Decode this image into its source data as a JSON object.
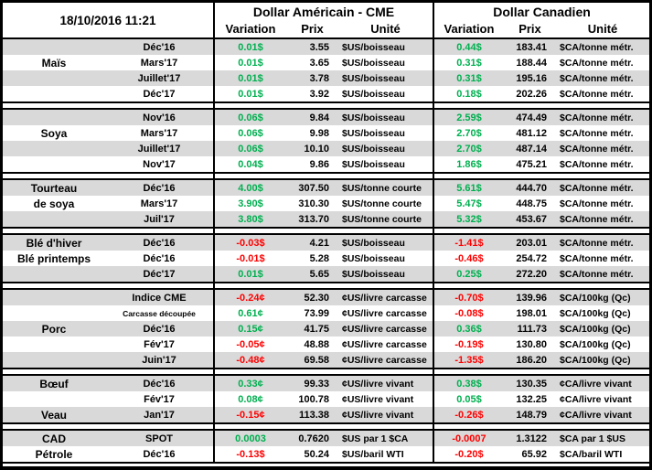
{
  "meta": {
    "timestamp": "18/10/2016 11:21"
  },
  "header": {
    "usd_group": "Dollar Américain - CME",
    "cad_group": "Dollar Canadien",
    "variation": "Variation",
    "prix": "Prix",
    "unite": "Unité"
  },
  "colors": {
    "positive": "#00B050",
    "negative": "#FF0000",
    "stripe": "#D9D9D9",
    "border": "#000000"
  },
  "sections": [
    {
      "id": "mais",
      "rows": [
        {
          "label": "",
          "month": "Déc'16",
          "us_var": "0.01$",
          "us_prix": "3.55",
          "us_unit": "$US/boisseau",
          "ca_var": "0.44$",
          "ca_prix": "183.41",
          "ca_unit": "$CA/tonne métr."
        },
        {
          "label": "Maïs",
          "month": "Mars'17",
          "us_var": "0.01$",
          "us_prix": "3.65",
          "us_unit": "$US/boisseau",
          "ca_var": "0.31$",
          "ca_prix": "188.44",
          "ca_unit": "$CA/tonne métr."
        },
        {
          "label": "",
          "month": "Juillet'17",
          "us_var": "0.01$",
          "us_prix": "3.78",
          "us_unit": "$US/boisseau",
          "ca_var": "0.31$",
          "ca_prix": "195.16",
          "ca_unit": "$CA/tonne métr."
        },
        {
          "label": "",
          "month": "Déc'17",
          "us_var": "0.01$",
          "us_prix": "3.92",
          "us_unit": "$US/boisseau",
          "ca_var": "0.18$",
          "ca_prix": "202.26",
          "ca_unit": "$CA/tonne métr."
        }
      ]
    },
    {
      "id": "soya",
      "rows": [
        {
          "label": "",
          "month": "Nov'16",
          "us_var": "0.06$",
          "us_prix": "9.84",
          "us_unit": "$US/boisseau",
          "ca_var": "2.59$",
          "ca_prix": "474.49",
          "ca_unit": "$CA/tonne métr."
        },
        {
          "label": "Soya",
          "month": "Mars'17",
          "us_var": "0.06$",
          "us_prix": "9.98",
          "us_unit": "$US/boisseau",
          "ca_var": "2.70$",
          "ca_prix": "481.12",
          "ca_unit": "$CA/tonne métr."
        },
        {
          "label": "",
          "month": "Juillet'17",
          "us_var": "0.06$",
          "us_prix": "10.10",
          "us_unit": "$US/boisseau",
          "ca_var": "2.70$",
          "ca_prix": "487.14",
          "ca_unit": "$CA/tonne métr."
        },
        {
          "label": "",
          "month": "Nov'17",
          "us_var": "0.04$",
          "us_prix": "9.86",
          "us_unit": "$US/boisseau",
          "ca_var": "1.86$",
          "ca_prix": "475.21",
          "ca_unit": "$CA/tonne métr."
        }
      ]
    },
    {
      "id": "tourteau-de-soya",
      "rows": [
        {
          "label": "Tourteau",
          "month": "Déc'16",
          "us_var": "4.00$",
          "us_prix": "307.50",
          "us_unit": "$US/tonne courte",
          "ca_var": "5.61$",
          "ca_prix": "444.70",
          "ca_unit": "$CA/tonne métr."
        },
        {
          "label": "de soya",
          "month": "Mars'17",
          "us_var": "3.90$",
          "us_prix": "310.30",
          "us_unit": "$US/tonne courte",
          "ca_var": "5.47$",
          "ca_prix": "448.75",
          "ca_unit": "$CA/tonne métr."
        },
        {
          "label": "",
          "month": "Juil'17",
          "us_var": "3.80$",
          "us_prix": "313.70",
          "us_unit": "$US/tonne courte",
          "ca_var": "5.32$",
          "ca_prix": "453.67",
          "ca_unit": "$CA/tonne métr."
        }
      ]
    },
    {
      "id": "ble",
      "rows": [
        {
          "label": "Blé d'hiver",
          "month": "Déc'16",
          "us_var": "-0.03$",
          "us_prix": "4.21",
          "us_unit": "$US/boisseau",
          "ca_var": "-1.41$",
          "ca_prix": "203.01",
          "ca_unit": "$CA/tonne métr."
        },
        {
          "label": "Blé printemps",
          "month": "Déc'16",
          "us_var": "-0.01$",
          "us_prix": "5.28",
          "us_unit": "$US/boisseau",
          "ca_var": "-0.46$",
          "ca_prix": "254.72",
          "ca_unit": "$CA/tonne métr."
        },
        {
          "label": "",
          "month": "Déc'17",
          "us_var": "0.01$",
          "us_prix": "5.65",
          "us_unit": "$US/boisseau",
          "ca_var": "0.25$",
          "ca_prix": "272.20",
          "ca_unit": "$CA/tonne métr."
        }
      ]
    },
    {
      "id": "porc",
      "rows": [
        {
          "label": "",
          "month": "Indice CME",
          "us_var": "-0.24¢",
          "us_prix": "52.30",
          "us_unit": "¢US/livre carcasse",
          "ca_var": "-0.70$",
          "ca_prix": "139.96",
          "ca_unit": "$CA/100kg (Qc)"
        },
        {
          "label": "",
          "month": "Carcasse découpée",
          "month_small": true,
          "us_var": "0.61¢",
          "us_prix": "73.99",
          "us_unit": "¢US/livre carcasse",
          "ca_var": "-0.08$",
          "ca_prix": "198.01",
          "ca_unit": "$CA/100kg (Qc)"
        },
        {
          "label": "Porc",
          "month": "Déc'16",
          "us_var": "0.15¢",
          "us_prix": "41.75",
          "us_unit": "¢US/livre carcasse",
          "ca_var": "0.36$",
          "ca_prix": "111.73",
          "ca_unit": "$CA/100kg (Qc)"
        },
        {
          "label": "",
          "month": "Fév'17",
          "us_var": "-0.05¢",
          "us_prix": "48.88",
          "us_unit": "¢US/livre carcasse",
          "ca_var": "-0.19$",
          "ca_prix": "130.80",
          "ca_unit": "$CA/100kg (Qc)"
        },
        {
          "label": "",
          "month": "Juin'17",
          "us_var": "-0.48¢",
          "us_prix": "69.58",
          "us_unit": "¢US/livre carcasse",
          "ca_var": "-1.35$",
          "ca_prix": "186.20",
          "ca_unit": "$CA/100kg (Qc)"
        }
      ]
    },
    {
      "id": "boeuf-veau",
      "rows": [
        {
          "label": "Bœuf",
          "month": "Déc'16",
          "us_var": "0.33¢",
          "us_prix": "99.33",
          "us_unit": "¢US/livre vivant",
          "ca_var": "0.38$",
          "ca_prix": "130.35",
          "ca_unit": "¢CA/livre vivant"
        },
        {
          "label": "",
          "month": "Fév'17",
          "us_var": "0.08¢",
          "us_prix": "100.78",
          "us_unit": "¢US/livre vivant",
          "ca_var": "0.05$",
          "ca_prix": "132.25",
          "ca_unit": "¢CA/livre vivant"
        },
        {
          "label": "Veau",
          "month": "Jan'17",
          "us_var": "-0.15¢",
          "us_prix": "113.38",
          "us_unit": "¢US/livre vivant",
          "ca_var": "-0.26$",
          "ca_prix": "148.79",
          "ca_unit": "¢CA/livre vivant"
        }
      ]
    },
    {
      "id": "cad-petrole",
      "rows": [
        {
          "label": "CAD",
          "month": "SPOT",
          "us_var": "0.0003",
          "us_prix": "0.7620",
          "us_unit": "$US par 1 $CA",
          "ca_var": "-0.0007",
          "ca_prix": "1.3122",
          "ca_unit": "$CA par 1 $US"
        },
        {
          "label": "Pétrole",
          "month": "Déc'16",
          "us_var": "-0.13$",
          "us_prix": "50.24",
          "us_unit": "$US/baril WTI",
          "ca_var": "-0.20$",
          "ca_prix": "65.92",
          "ca_unit": "$CA/baril WTI"
        }
      ]
    }
  ]
}
